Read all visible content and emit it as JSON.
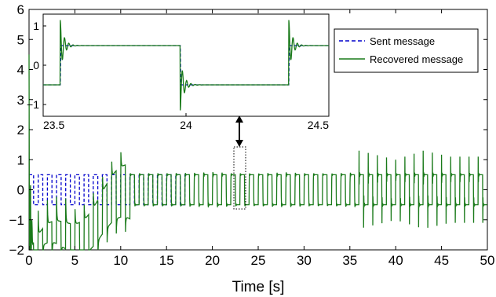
{
  "chart_data": [
    {
      "id": "main",
      "type": "line",
      "title": "",
      "xlabel": "Time [s]",
      "ylabel": "",
      "xlim": [
        0,
        50
      ],
      "ylim": [
        -2,
        6
      ],
      "xticks": [
        0,
        5,
        10,
        15,
        20,
        25,
        30,
        35,
        40,
        45,
        50
      ],
      "yticks": [
        -2,
        -1,
        0,
        1,
        2,
        3,
        4,
        5,
        6
      ],
      "xtick_labels": [
        "0",
        "5",
        "10",
        "15",
        "20",
        "25",
        "30",
        "35",
        "40",
        "45",
        "50"
      ],
      "ytick_labels": [
        "−2",
        "−1",
        "0",
        "1",
        "2",
        "3",
        "4",
        "5",
        "6"
      ],
      "grid": false,
      "bit_period_s": 0.5,
      "series": [
        {
          "name": "Sent message",
          "style": "dashed",
          "color": "#0000cc",
          "levels": [
            -0.5,
            0.5
          ],
          "x_range": [
            0,
            50
          ]
        },
        {
          "name": "Recovered message",
          "style": "solid",
          "color": "#1a7a1a",
          "levels": [
            -0.5,
            0.5
          ],
          "x_range": [
            0,
            50
          ],
          "description_points": {
            "initial_peak": [
              0.2,
              6
            ],
            "overshoot_envelope": [
              [
                11,
                1.0
              ],
              [
                15,
                1.0
              ],
              [
                18,
                1.1
              ],
              [
                20,
                1.4
              ],
              [
                22,
                1.0
              ],
              [
                25,
                0.9
              ],
              [
                28,
                1.3
              ],
              [
                30,
                1.0
              ],
              [
                33,
                0.9
              ],
              [
                36,
                1.3
              ],
              [
                40,
                1.0
              ],
              [
                43,
                1.3
              ],
              [
                46,
                1.1
              ],
              [
                50,
                1.1
              ]
            ]
          }
        }
      ]
    },
    {
      "id": "inset",
      "type": "line",
      "xlim": [
        23.5,
        24.5
      ],
      "ylim": [
        -1.3,
        1.3
      ],
      "xticks": [
        23.5,
        24,
        24.5
      ],
      "yticks": [
        -1,
        0,
        1
      ],
      "xtick_labels": [
        "23.5",
        "24",
        "24.5"
      ],
      "ytick_labels": [
        "−1",
        "0",
        "1"
      ],
      "switch_times": [
        23.56,
        23.98,
        24.36
      ],
      "levels": [
        -0.5,
        0.5,
        -0.5,
        0.5
      ],
      "series": [
        {
          "name": "Sent message",
          "style": "dashed",
          "color": "#0000cc"
        },
        {
          "name": "Recovered message",
          "style": "solid",
          "color": "#1a7a1a"
        }
      ]
    }
  ],
  "legend": {
    "placement": "top-right",
    "entries": [
      "Sent message",
      "Recovered message"
    ]
  }
}
